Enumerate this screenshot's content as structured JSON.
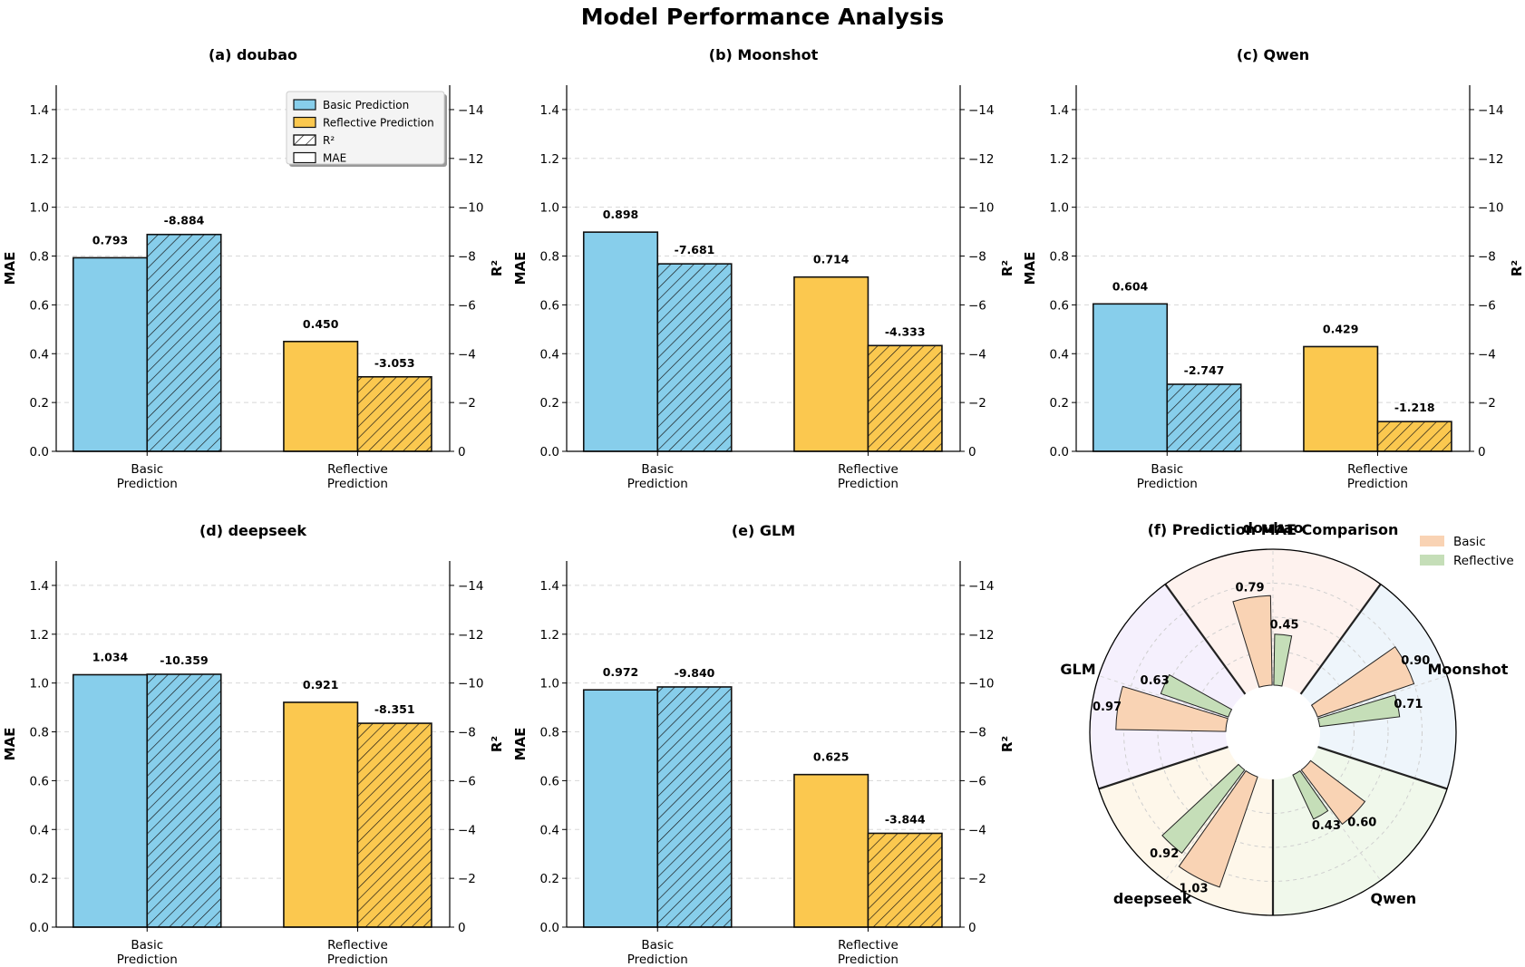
{
  "figure_title": "Model Performance Analysis",
  "colors": {
    "basic": "#87CEEB",
    "reflective": "#FBC84F",
    "basic_polar": "#F9D3B4",
    "reflective_polar": "#C5DEB8"
  },
  "chart_data": [
    {
      "type": "bar",
      "title": "(a) doubao",
      "categories": [
        "Basic\nPrediction",
        "Reflective\nPrediction"
      ],
      "ylabel": "MAE",
      "y2label": "R²",
      "ylim": [
        0,
        1.5
      ],
      "y2lim": [
        0,
        -15
      ],
      "y2_inverted": true,
      "mae": [
        0.793,
        0.45
      ],
      "r2": [
        -8.884,
        -3.053
      ],
      "mae_labels": [
        "0.793",
        "0.450"
      ],
      "r2_labels": [
        "-8.884",
        "-3.053"
      ],
      "legend": [
        "Basic Prediction",
        "Reflective Prediction",
        "R²",
        "MAE"
      ],
      "yticks": [
        "0.0",
        "0.2",
        "0.4",
        "0.6",
        "0.8",
        "1.0",
        "1.2",
        "1.4"
      ],
      "y2ticks": [
        "0",
        "−2",
        "−4",
        "−6",
        "−8",
        "−10",
        "−12",
        "−14"
      ]
    },
    {
      "type": "bar",
      "title": "(b) Moonshot",
      "categories": [
        "Basic\nPrediction",
        "Reflective\nPrediction"
      ],
      "ylabel": "MAE",
      "y2label": "R²",
      "ylim": [
        0,
        1.5
      ],
      "y2lim": [
        0,
        -15
      ],
      "y2_inverted": true,
      "mae": [
        0.898,
        0.714
      ],
      "r2": [
        -7.681,
        -4.333
      ],
      "mae_labels": [
        "0.898",
        "0.714"
      ],
      "r2_labels": [
        "-7.681",
        "-4.333"
      ],
      "yticks": [
        "0.0",
        "0.2",
        "0.4",
        "0.6",
        "0.8",
        "1.0",
        "1.2",
        "1.4"
      ],
      "y2ticks": [
        "0",
        "−2",
        "−4",
        "−6",
        "−8",
        "−10",
        "−12",
        "−14"
      ]
    },
    {
      "type": "bar",
      "title": "(c) Qwen",
      "categories": [
        "Basic\nPrediction",
        "Reflective\nPrediction"
      ],
      "ylabel": "MAE",
      "y2label": "R²",
      "ylim": [
        0,
        1.5
      ],
      "y2lim": [
        0,
        -15
      ],
      "y2_inverted": true,
      "mae": [
        0.604,
        0.429
      ],
      "r2": [
        -2.747,
        -1.218
      ],
      "mae_labels": [
        "0.604",
        "0.429"
      ],
      "r2_labels": [
        "-2.747",
        "-1.218"
      ],
      "yticks": [
        "0.0",
        "0.2",
        "0.4",
        "0.6",
        "0.8",
        "1.0",
        "1.2",
        "1.4"
      ],
      "y2ticks": [
        "0",
        "−2",
        "−4",
        "−6",
        "−8",
        "−10",
        "−12",
        "−14"
      ]
    },
    {
      "type": "bar",
      "title": "(d) deepseek",
      "categories": [
        "Basic\nPrediction",
        "Reflective\nPrediction"
      ],
      "ylabel": "MAE",
      "y2label": "R²",
      "ylim": [
        0,
        1.5
      ],
      "y2lim": [
        0,
        -15
      ],
      "y2_inverted": true,
      "mae": [
        1.034,
        0.921
      ],
      "r2": [
        -10.359,
        -8.351
      ],
      "mae_labels": [
        "1.034",
        "0.921"
      ],
      "r2_labels": [
        "-10.359",
        "-8.351"
      ],
      "yticks": [
        "0.0",
        "0.2",
        "0.4",
        "0.6",
        "0.8",
        "1.0",
        "1.2",
        "1.4"
      ],
      "y2ticks": [
        "0",
        "−2",
        "−4",
        "−6",
        "−8",
        "−10",
        "−12",
        "−14"
      ]
    },
    {
      "type": "bar",
      "title": "(e) GLM",
      "categories": [
        "Basic\nPrediction",
        "Reflective\nPrediction"
      ],
      "ylabel": "MAE",
      "y2label": "R²",
      "ylim": [
        0,
        1.5
      ],
      "y2lim": [
        0,
        -15
      ],
      "y2_inverted": true,
      "mae": [
        0.972,
        0.625
      ],
      "r2": [
        -9.84,
        -3.844
      ],
      "mae_labels": [
        "0.972",
        "0.625"
      ],
      "r2_labels": [
        "-9.840",
        "-3.844"
      ],
      "yticks": [
        "0.0",
        "0.2",
        "0.4",
        "0.6",
        "0.8",
        "1.0",
        "1.2",
        "1.4"
      ],
      "y2ticks": [
        "0",
        "−2",
        "−4",
        "−6",
        "−8",
        "−10",
        "−12",
        "−14"
      ]
    },
    {
      "type": "polar_bar",
      "title": "(f) Prediction MAE Comparison",
      "models": [
        "doubao",
        "Moonshot",
        "Qwen",
        "deepseek",
        "GLM"
      ],
      "basic": [
        0.79,
        0.9,
        0.6,
        1.03,
        0.97
      ],
      "reflective": [
        0.45,
        0.71,
        0.43,
        0.92,
        0.63
      ],
      "basic_labels": [
        "0.79",
        "0.90",
        "0.60",
        "1.03",
        "0.97"
      ],
      "reflective_labels": [
        "0.45",
        "0.71",
        "0.43",
        "0.92",
        "0.63"
      ],
      "rlim": [
        0,
        1.2
      ],
      "legend": [
        "Basic",
        "Reflective"
      ],
      "sector_colors": [
        "#FDE9E3",
        "#E3EEF9",
        "#E6F3DE",
        "#FDF2DC",
        "#EEE6FB"
      ]
    }
  ]
}
